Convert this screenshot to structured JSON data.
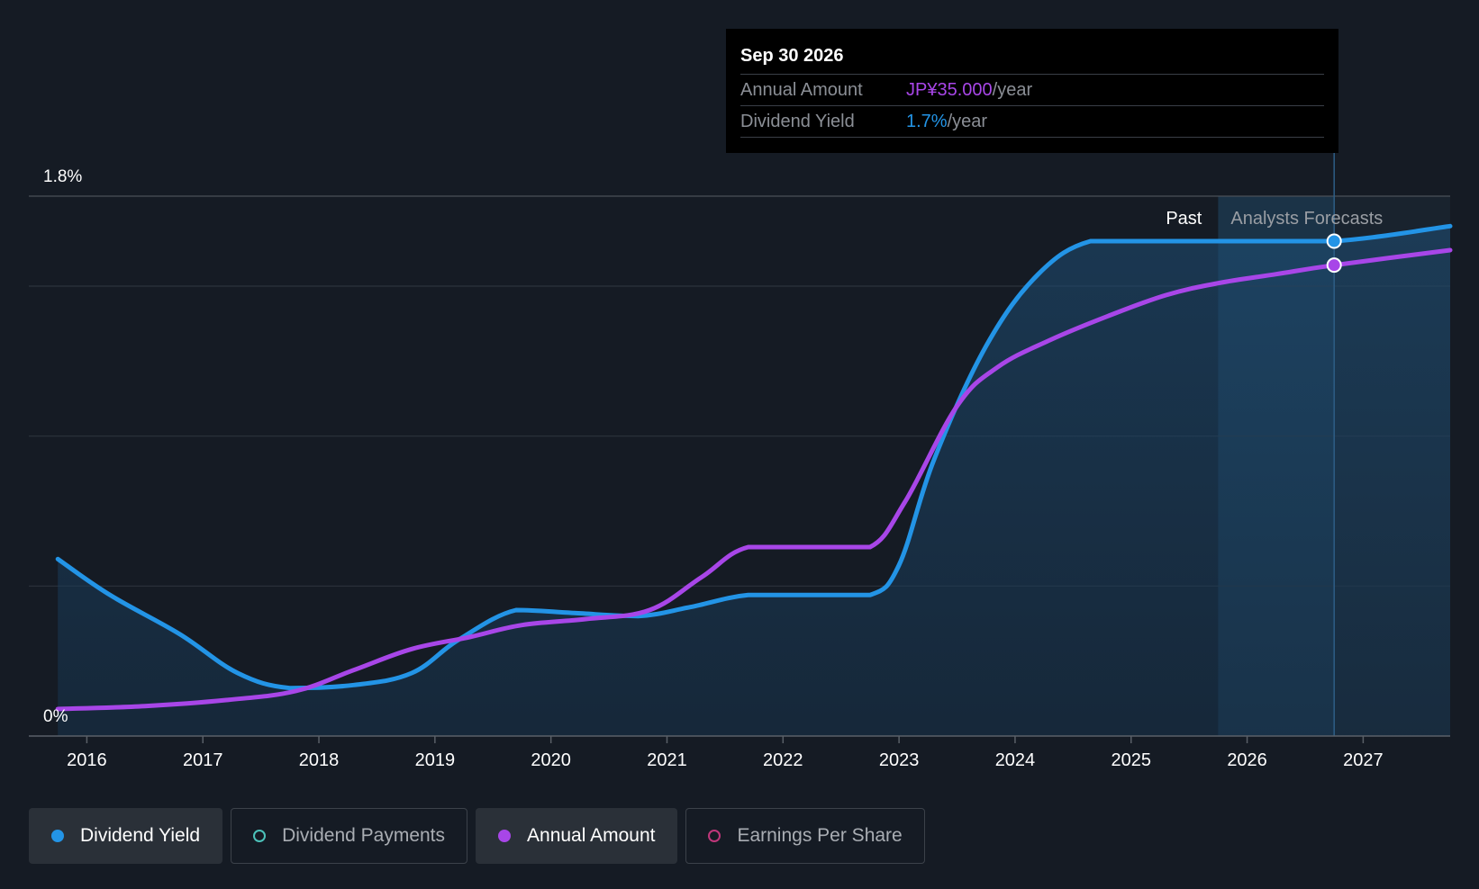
{
  "colors": {
    "yield": "#2394e6",
    "annual": "#a846e8",
    "payments": "#4cc2ba",
    "eps": "#c0377a",
    "background": "#151b24"
  },
  "tooltip": {
    "date": "Sep 30 2026",
    "annual_label": "Annual Amount",
    "annual_value": "JP¥35.000",
    "annual_unit": "/year",
    "yield_label": "Dividend Yield",
    "yield_value": "1.7%",
    "yield_unit": "/year"
  },
  "sections": {
    "past": "Past",
    "forecast": "Analysts Forecasts"
  },
  "legend": [
    {
      "label": "Dividend Yield",
      "active": true,
      "dot": "filled",
      "color": "#2394e6"
    },
    {
      "label": "Dividend Payments",
      "active": false,
      "dot": "hollow",
      "color": "#4cc2ba"
    },
    {
      "label": "Annual Amount",
      "active": true,
      "dot": "filled",
      "color": "#a846e8"
    },
    {
      "label": "Earnings Per Share",
      "active": false,
      "dot": "hollow",
      "color": "#c0377a"
    }
  ],
  "chart_data": {
    "type": "line",
    "title": "",
    "xlabel": "",
    "ylabel": "",
    "x_range": [
      2015.5,
      2027.75
    ],
    "ylim": [
      0,
      1.8
    ],
    "y_tick_labels": [
      {
        "value": 0,
        "label": "0%"
      },
      {
        "value": 1.8,
        "label": "1.8%"
      }
    ],
    "y_gridlines": [
      0.5,
      1.0,
      1.5,
      1.8
    ],
    "x_ticks": [
      2016,
      2017,
      2018,
      2019,
      2020,
      2021,
      2022,
      2023,
      2024,
      2025,
      2026,
      2027
    ],
    "forecast_start": 2025.75,
    "highlight_x": 2026.75,
    "series": [
      {
        "name": "Dividend Yield",
        "unit": "%",
        "filled": true,
        "points": [
          [
            2015.75,
            0.59
          ],
          [
            2016.2,
            0.47
          ],
          [
            2016.8,
            0.34
          ],
          [
            2017.3,
            0.21
          ],
          [
            2017.75,
            0.16
          ],
          [
            2018.3,
            0.17
          ],
          [
            2018.8,
            0.21
          ],
          [
            2019.2,
            0.32
          ],
          [
            2019.7,
            0.42
          ],
          [
            2020.2,
            0.41
          ],
          [
            2020.75,
            0.4
          ],
          [
            2021.2,
            0.43
          ],
          [
            2021.7,
            0.47
          ],
          [
            2022.3,
            0.47
          ],
          [
            2022.75,
            0.47
          ],
          [
            2023.0,
            0.57
          ],
          [
            2023.3,
            0.92
          ],
          [
            2023.75,
            1.3
          ],
          [
            2024.2,
            1.54
          ],
          [
            2024.65,
            1.65
          ],
          [
            2025.2,
            1.65
          ],
          [
            2025.75,
            1.65
          ],
          [
            2026.75,
            1.65
          ],
          [
            2027.75,
            1.7
          ]
        ]
      },
      {
        "name": "Annual Amount",
        "unit": "%",
        "filled": false,
        "points": [
          [
            2015.75,
            0.09
          ],
          [
            2016.5,
            0.1
          ],
          [
            2017.2,
            0.12
          ],
          [
            2017.8,
            0.15
          ],
          [
            2018.3,
            0.22
          ],
          [
            2018.8,
            0.29
          ],
          [
            2019.3,
            0.33
          ],
          [
            2019.75,
            0.37
          ],
          [
            2020.3,
            0.39
          ],
          [
            2020.85,
            0.42
          ],
          [
            2021.3,
            0.53
          ],
          [
            2021.7,
            0.63
          ],
          [
            2022.3,
            0.63
          ],
          [
            2022.75,
            0.63
          ],
          [
            2023.05,
            0.78
          ],
          [
            2023.5,
            1.1
          ],
          [
            2023.85,
            1.23
          ],
          [
            2024.3,
            1.32
          ],
          [
            2024.8,
            1.4
          ],
          [
            2025.3,
            1.47
          ],
          [
            2025.75,
            1.51
          ],
          [
            2026.25,
            1.54
          ],
          [
            2026.75,
            1.57
          ],
          [
            2027.75,
            1.62
          ]
        ]
      }
    ]
  }
}
